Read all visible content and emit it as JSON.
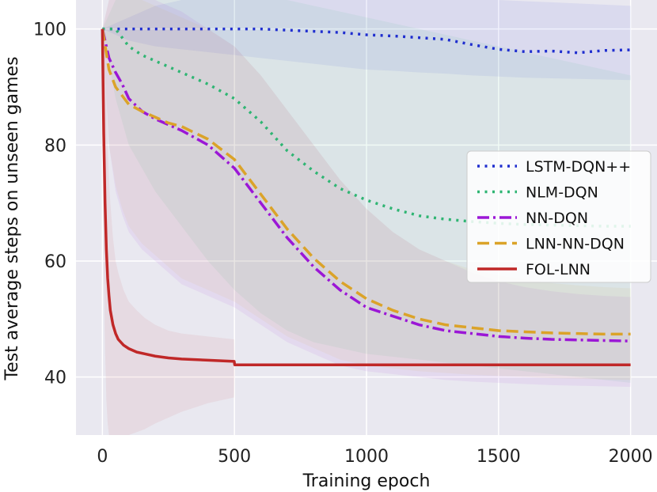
{
  "chart_data": {
    "type": "line",
    "title": "",
    "xlabel": "Training epoch",
    "ylabel": "Test average steps on unseen games",
    "xlim": [
      -100,
      2100
    ],
    "ylim": [
      30,
      105
    ],
    "xticks": [
      0,
      500,
      1000,
      1500,
      2000
    ],
    "yticks": [
      40,
      60,
      80,
      100
    ],
    "xtick_labels": [
      "0",
      "500",
      "1000",
      "1500",
      "2000"
    ],
    "ytick_labels": [
      "40",
      "60",
      "80",
      "100"
    ],
    "grid": true,
    "legend_position": "center-right",
    "series": [
      {
        "name": "LSTM-DQN++",
        "color": "#1f2ecf",
        "style": "dotted",
        "x": [
          0,
          100,
          200,
          300,
          400,
          500,
          600,
          700,
          800,
          900,
          1000,
          1100,
          1200,
          1300,
          1400,
          1500,
          1600,
          1700,
          1800,
          1900,
          2000
        ],
        "y": [
          100,
          100,
          100,
          100,
          100,
          100,
          100,
          99.8,
          99.6,
          99.4,
          99.0,
          98.8,
          98.5,
          98.2,
          97.3,
          96.5,
          96.1,
          96.2,
          95.9,
          96.3,
          96.4
        ],
        "band_lower": [
          100,
          98,
          97,
          96.5,
          96,
          95.5,
          95,
          94.5,
          94,
          93.5,
          93,
          92.8,
          92.5,
          92.3,
          92,
          91.8,
          91.6,
          91.5,
          91.4,
          91.3,
          91.2
        ],
        "band_upper": [
          100,
          102,
          104,
          105,
          105,
          105,
          105,
          105,
          105,
          105,
          105,
          105,
          105,
          105,
          105,
          105,
          104.8,
          104.6,
          104.4,
          104.2,
          104
        ]
      },
      {
        "name": "NLM-DQN",
        "color": "#2fb573",
        "style": "dotted",
        "x": [
          0,
          50,
          100,
          150,
          200,
          300,
          400,
          500,
          600,
          700,
          800,
          900,
          1000,
          1100,
          1200,
          1300,
          1400,
          1500,
          1600,
          1700,
          1800,
          1900,
          2000
        ],
        "y": [
          100,
          100,
          97,
          95.5,
          94.5,
          92.5,
          90.5,
          88,
          84,
          79,
          75.5,
          72.5,
          70.5,
          69,
          67.8,
          67.2,
          66.8,
          66.5,
          66.3,
          66.2,
          66.1,
          66.0,
          66.0
        ],
        "band_lower": [
          100,
          88,
          80,
          76,
          72,
          66,
          60,
          55,
          51,
          48,
          46,
          45,
          44,
          43.5,
          43,
          42.5,
          42,
          41.5,
          41,
          40.5,
          40,
          39.5,
          39
        ],
        "band_upper": [
          100,
          105,
          105,
          105,
          105,
          105,
          105,
          105,
          105,
          105,
          104,
          103,
          102,
          101,
          100,
          99,
          98,
          97,
          96,
          95,
          94,
          93,
          92
        ]
      },
      {
        "name": "NN-DQN",
        "color": "#9b17d6",
        "style": "dashdot",
        "x": [
          0,
          25,
          50,
          75,
          100,
          150,
          200,
          250,
          300,
          400,
          500,
          600,
          700,
          800,
          900,
          1000,
          1100,
          1200,
          1300,
          1400,
          1500,
          1600,
          1700,
          1800,
          1900,
          2000
        ],
        "y": [
          100,
          95,
          92.5,
          90.5,
          88,
          85.8,
          84.5,
          83.5,
          82.5,
          80,
          76,
          70,
          64,
          59,
          55,
          52,
          50.5,
          49,
          48,
          47.5,
          47.0,
          46.7,
          46.5,
          46.4,
          46.3,
          46.2
        ],
        "band_lower": [
          100,
          80,
          72,
          68,
          65,
          62,
          60,
          58,
          56,
          54,
          52,
          49,
          46,
          44,
          42,
          41,
          40.5,
          40,
          39.5,
          39.2,
          39,
          38.8,
          38.6,
          38.5,
          38.4,
          38.3
        ],
        "band_upper": [
          100,
          105,
          105,
          105,
          105,
          105,
          105,
          104,
          103,
          100,
          97,
          92,
          86,
          80,
          74,
          69,
          65,
          62,
          60,
          58,
          56.5,
          55.5,
          54.8,
          54.3,
          54,
          53.8
        ]
      },
      {
        "name": "LNN-NN-DQN",
        "color": "#dba329",
        "style": "dashed",
        "x": [
          0,
          25,
          50,
          75,
          100,
          150,
          200,
          250,
          300,
          400,
          500,
          600,
          700,
          800,
          900,
          1000,
          1100,
          1200,
          1300,
          1400,
          1500,
          1600,
          1700,
          1800,
          1900,
          2000
        ],
        "y": [
          100,
          93,
          90,
          88.5,
          87,
          85.8,
          84.8,
          83.8,
          83.2,
          81,
          77.5,
          71.5,
          65.5,
          60.5,
          56.5,
          53.5,
          51.5,
          50,
          49,
          48.5,
          48.0,
          47.8,
          47.6,
          47.5,
          47.4,
          47.4
        ],
        "band_lower": [
          100,
          80,
          73,
          69,
          66,
          63,
          61,
          59,
          57,
          55,
          53,
          50,
          47,
          45,
          43,
          42,
          41.5,
          41,
          40.7,
          40.4,
          40.2,
          40,
          39.8,
          39.7,
          39.6,
          39.5
        ],
        "band_upper": [
          100,
          105,
          105,
          105,
          105,
          105,
          104,
          103,
          102,
          100,
          97,
          92,
          86,
          80,
          74,
          69,
          65,
          62,
          60,
          58.5,
          57.5,
          56.8,
          56.2,
          55.8,
          55.5,
          55.3
        ]
      },
      {
        "name": "FOL-LNN",
        "color": "#c02828",
        "style": "solid",
        "x": [
          0,
          5,
          10,
          15,
          20,
          25,
          30,
          40,
          50,
          60,
          80,
          100,
          130,
          160,
          200,
          250,
          300,
          400,
          499,
          501,
          600,
          800,
          1000,
          1200,
          1400,
          1600,
          1800,
          2000
        ],
        "y": [
          100,
          82,
          70,
          62,
          57,
          54,
          51.5,
          49,
          47.5,
          46.5,
          45.5,
          44.9,
          44.3,
          44.0,
          43.6,
          43.3,
          43.1,
          42.9,
          42.7,
          42.1,
          42.1,
          42.1,
          42.1,
          42.1,
          42.1,
          42.1,
          42.1,
          42.1
        ],
        "band_lower": [
          100,
          60,
          45,
          36,
          32,
          30,
          30,
          30,
          30,
          30,
          30,
          30,
          30.5,
          31,
          32,
          33,
          34,
          35.5,
          36.5,
          42.0,
          42.0,
          42.0,
          42.0,
          42.0,
          42.0,
          42.0,
          42.0,
          42.0
        ],
        "band_upper": [
          100,
          100,
          95,
          88,
          80,
          74,
          70,
          64,
          60,
          58,
          55,
          53,
          51.5,
          50.2,
          49,
          48,
          47.5,
          47,
          46.5,
          42.2,
          42.2,
          42.2,
          42.2,
          42.2,
          42.2,
          42.2,
          42.2,
          42.2
        ]
      }
    ]
  }
}
